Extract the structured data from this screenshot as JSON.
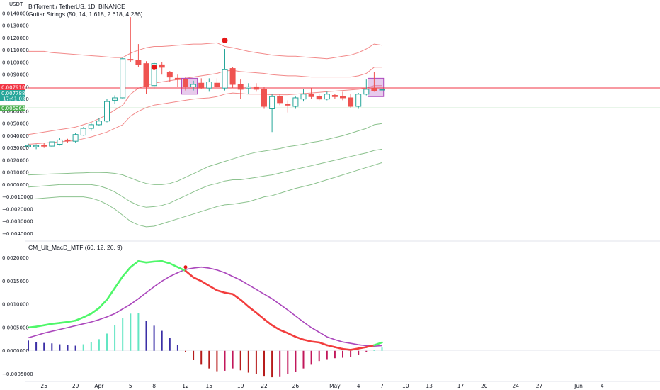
{
  "legend": {
    "symbol": "BitTorrent / TetherUS, 1D, BINANCE",
    "study1": "Guitar Strings (50, 14, 1.618, 2.618, 4.236)",
    "study2": "CM_Ult_MacD_MTF (60, 12, 26, 9)"
  },
  "currency_label": "USDT",
  "colors": {
    "up": "#26a69a",
    "down": "#ef5350",
    "upper_band": "#f28a8a",
    "lower_band": "#8cc28e",
    "macd_up": "#4ff76a",
    "macd_down": "#f23d3d",
    "signal": "#ab47bc",
    "hist_blue": "#3b2fa6",
    "hist_teal": "#63e6c3",
    "hist_red": "#b71c1c",
    "red_line": "#f23645",
    "green_line": "#4caf50"
  },
  "badges": {
    "red_line": "0.0079103",
    "last_price": "0.0077882",
    "countdown": "17:41:03",
    "green_line": "0.0062648"
  },
  "chart_data": [
    {
      "type": "candlestick",
      "title": "BitTorrent / TetherUS, 1D, BINANCE",
      "ylim": [
        -0.0045,
        0.0151
      ],
      "y_ticks": [
        "0.0140000",
        "0.0130000",
        "0.0120000",
        "0.0110000",
        "0.0100000",
        "0.0090000",
        "0.0080000",
        "0.0070000",
        "0.0060000",
        "0.0050000",
        "0.0040000",
        "0.0030000",
        "0.0020000",
        "0.0010000",
        "0.0000000",
        "−0.0010000",
        "−0.0020000",
        "−0.0030000",
        "−0.0040000"
      ],
      "y_tick_values": [
        0.014,
        0.013,
        0.012,
        0.011,
        0.01,
        0.009,
        0.008,
        0.007,
        0.006,
        0.005,
        0.004,
        0.003,
        0.002,
        0.001,
        0.0,
        -0.001,
        -0.002,
        -0.003,
        -0.004
      ],
      "horizontal_lines": [
        0.0079103,
        0.0062648
      ],
      "candles": [
        {
          "o": 0.0031,
          "h": 0.00335,
          "l": 0.00295,
          "c": 0.0032
        },
        {
          "o": 0.0031,
          "h": 0.0033,
          "l": 0.0029,
          "c": 0.0032
        },
        {
          "o": 0.0032,
          "h": 0.0034,
          "l": 0.003,
          "c": 0.00315
        },
        {
          "o": 0.00315,
          "h": 0.00345,
          "l": 0.0031,
          "c": 0.0035
        },
        {
          "o": 0.0033,
          "h": 0.0038,
          "l": 0.0032,
          "c": 0.00365
        },
        {
          "o": 0.00365,
          "h": 0.00375,
          "l": 0.00345,
          "c": 0.0036
        },
        {
          "o": 0.00355,
          "h": 0.0042,
          "l": 0.00345,
          "c": 0.0041
        },
        {
          "o": 0.00405,
          "h": 0.0047,
          "l": 0.004,
          "c": 0.0046
        },
        {
          "o": 0.0046,
          "h": 0.005,
          "l": 0.0044,
          "c": 0.0049
        },
        {
          "o": 0.0049,
          "h": 0.00545,
          "l": 0.0048,
          "c": 0.0052
        },
        {
          "o": 0.0052,
          "h": 0.007,
          "l": 0.0051,
          "c": 0.0068
        },
        {
          "o": 0.0069,
          "h": 0.0073,
          "l": 0.0066,
          "c": 0.0071
        },
        {
          "o": 0.0071,
          "h": 0.0104,
          "l": 0.007,
          "c": 0.0103
        },
        {
          "o": 0.01025,
          "h": 0.0137,
          "l": 0.01,
          "c": 0.0102
        },
        {
          "o": 0.0102,
          "h": 0.0115,
          "l": 0.0096,
          "c": 0.0098
        },
        {
          "o": 0.0099,
          "h": 0.0101,
          "l": 0.0074,
          "c": 0.008
        },
        {
          "o": 0.0081,
          "h": 0.01,
          "l": 0.0078,
          "c": 0.0099
        },
        {
          "o": 0.0098,
          "h": 0.01,
          "l": 0.009,
          "c": 0.0096
        },
        {
          "o": 0.0092,
          "h": 0.0093,
          "l": 0.0084,
          "c": 0.0088
        },
        {
          "o": 0.0087,
          "h": 0.009,
          "l": 0.008,
          "c": 0.0086
        },
        {
          "o": 0.0086,
          "h": 0.0088,
          "l": 0.0077,
          "c": 0.008
        },
        {
          "o": 0.008,
          "h": 0.0085,
          "l": 0.0077,
          "c": 0.0082
        },
        {
          "o": 0.0083,
          "h": 0.0087,
          "l": 0.0078,
          "c": 0.0079
        },
        {
          "o": 0.0079,
          "h": 0.0087,
          "l": 0.0076,
          "c": 0.0084
        },
        {
          "o": 0.0083,
          "h": 0.0087,
          "l": 0.0079,
          "c": 0.008
        },
        {
          "o": 0.0079,
          "h": 0.0111,
          "l": 0.0077,
          "c": 0.0094
        },
        {
          "o": 0.0095,
          "h": 0.0096,
          "l": 0.0079,
          "c": 0.0082
        },
        {
          "o": 0.0082,
          "h": 0.0086,
          "l": 0.007,
          "c": 0.0078
        },
        {
          "o": 0.0079,
          "h": 0.0083,
          "l": 0.0074,
          "c": 0.008
        },
        {
          "o": 0.008,
          "h": 0.0083,
          "l": 0.0076,
          "c": 0.0078
        },
        {
          "o": 0.0078,
          "h": 0.008,
          "l": 0.0062,
          "c": 0.0064
        },
        {
          "o": 0.0062,
          "h": 0.0074,
          "l": 0.0043,
          "c": 0.0072
        },
        {
          "o": 0.0072,
          "h": 0.0074,
          "l": 0.0065,
          "c": 0.0067
        },
        {
          "o": 0.0066,
          "h": 0.0069,
          "l": 0.0059,
          "c": 0.0065
        },
        {
          "o": 0.0064,
          "h": 0.0072,
          "l": 0.0062,
          "c": 0.0071
        },
        {
          "o": 0.007,
          "h": 0.0078,
          "l": 0.0068,
          "c": 0.0074
        },
        {
          "o": 0.0074,
          "h": 0.0079,
          "l": 0.007,
          "c": 0.0072
        },
        {
          "o": 0.0072,
          "h": 0.0074,
          "l": 0.0069,
          "c": 0.007
        },
        {
          "o": 0.007,
          "h": 0.0076,
          "l": 0.0069,
          "c": 0.0074
        },
        {
          "o": 0.0073,
          "h": 0.0074,
          "l": 0.007,
          "c": 0.0072
        },
        {
          "o": 0.0072,
          "h": 0.0076,
          "l": 0.0069,
          "c": 0.0071
        },
        {
          "o": 0.0071,
          "h": 0.0074,
          "l": 0.0063,
          "c": 0.0064
        },
        {
          "o": 0.0064,
          "h": 0.0075,
          "l": 0.0062,
          "c": 0.0074
        },
        {
          "o": 0.0074,
          "h": 0.0086,
          "l": 0.0073,
          "c": 0.0078
        },
        {
          "o": 0.0079,
          "h": 0.0092,
          "l": 0.0076,
          "c": 0.0077
        },
        {
          "o": 0.00775,
          "h": 0.0079,
          "l": 0.0076,
          "c": 0.00779
        }
      ],
      "upper_band_outer": [
        0.0109,
        0.0109,
        0.0109,
        0.0108,
        0.01075,
        0.0107,
        0.01065,
        0.0106,
        0.01055,
        0.0105,
        0.01045,
        0.0104,
        0.0104,
        0.01075,
        0.011,
        0.0112,
        0.0113,
        0.0113,
        0.01135,
        0.0114,
        0.01145,
        0.0115,
        0.0115,
        0.01155,
        0.0116,
        0.0113,
        0.0112,
        0.01105,
        0.0109,
        0.0108,
        0.0107,
        0.0106,
        0.01055,
        0.0105,
        0.0105,
        0.01045,
        0.0104,
        0.01035,
        0.0103,
        0.0104,
        0.0105,
        0.0106,
        0.0108,
        0.0111,
        0.0115,
        0.0114
      ],
      "upper_band_mid": [
        0.0041,
        0.0042,
        0.0043,
        0.0044,
        0.0045,
        0.0046,
        0.0047,
        0.0049,
        0.0051,
        0.0054,
        0.0057,
        0.0061,
        0.0065,
        0.0074,
        0.0079,
        0.0081,
        0.0083,
        0.0084,
        0.0085,
        0.0086,
        0.0087,
        0.0088,
        0.0089,
        0.009,
        0.0091,
        0.0093,
        0.00935,
        0.00925,
        0.0092,
        0.00915,
        0.0091,
        0.009,
        0.00895,
        0.0089,
        0.0089,
        0.00885,
        0.0088,
        0.0088,
        0.0088,
        0.0088,
        0.0088,
        0.0088,
        0.0089,
        0.0091,
        0.0096,
        0.0096
      ],
      "upper_band_inner": [
        0.0033,
        0.00335,
        0.0034,
        0.00345,
        0.0035,
        0.00355,
        0.0036,
        0.00375,
        0.0039,
        0.0041,
        0.0043,
        0.0046,
        0.0049,
        0.0056,
        0.006,
        0.0063,
        0.0065,
        0.0066,
        0.0067,
        0.0068,
        0.0069,
        0.007,
        0.00705,
        0.0071,
        0.0072,
        0.0074,
        0.0075,
        0.00745,
        0.0074,
        0.0074,
        0.0074,
        0.00735,
        0.00735,
        0.00735,
        0.0074,
        0.00745,
        0.0075,
        0.00755,
        0.0076,
        0.00765,
        0.0077,
        0.00775,
        0.0078,
        0.0079,
        0.0081,
        0.0081
      ],
      "lower_band_inner": [
        0.0008,
        0.00082,
        0.00085,
        0.00088,
        0.0009,
        0.00092,
        0.00095,
        0.00097,
        0.001,
        0.001,
        0.00098,
        0.00092,
        0.0008,
        0.00055,
        0.0003,
        0.0001,
        0.0,
        0.0,
        0.0001,
        0.0003,
        0.0006,
        0.0009,
        0.0012,
        0.0015,
        0.0017,
        0.0019,
        0.0021,
        0.0023,
        0.0025,
        0.00265,
        0.00275,
        0.00285,
        0.00295,
        0.0031,
        0.0032,
        0.0033,
        0.00345,
        0.00355,
        0.0037,
        0.00385,
        0.004,
        0.0042,
        0.0044,
        0.0046,
        0.0049,
        0.005
      ],
      "lower_band_mid": [
        -0.0002,
        -0.00015,
        -0.0001,
        -5e-05,
        0.0,
        0.0,
        0.0,
        0.0,
        0.0,
        -0.0001,
        -0.0003,
        -0.0006,
        -0.001,
        -0.0014,
        -0.0017,
        -0.00185,
        -0.0018,
        -0.0017,
        -0.0015,
        -0.0012,
        -0.0009,
        -0.0006,
        -0.0003,
        -5e-05,
        0.0001,
        0.0003,
        0.0004,
        0.0004,
        0.0005,
        0.0006,
        0.0007,
        0.0008,
        0.00095,
        0.0011,
        0.00125,
        0.0014,
        0.00155,
        0.0017,
        0.00185,
        0.002,
        0.00215,
        0.0023,
        0.00245,
        0.0026,
        0.0028,
        0.0029
      ],
      "lower_band_outer": [
        -0.0012,
        -0.00115,
        -0.0011,
        -0.00105,
        -0.001,
        -0.001,
        -0.001,
        -0.001,
        -0.0011,
        -0.0013,
        -0.0016,
        -0.002,
        -0.0025,
        -0.003,
        -0.0033,
        -0.00345,
        -0.0034,
        -0.0032,
        -0.003,
        -0.0028,
        -0.0026,
        -0.0024,
        -0.0022,
        -0.002,
        -0.0018,
        -0.00165,
        -0.0016,
        -0.0015,
        -0.0014,
        -0.0012,
        -0.001,
        -0.0009,
        -0.0007,
        -0.0005,
        -0.0003,
        -0.00015,
        0.0,
        0.0002,
        0.0004,
        0.0006,
        0.0008,
        0.001,
        0.0012,
        0.0014,
        0.0016,
        0.0018
      ],
      "signal_dots": [
        {
          "index": 16,
          "y": 0.0096
        },
        {
          "index": 25,
          "y": 0.0118
        }
      ],
      "boxes": [
        {
          "from": 19.5,
          "to": 21.5,
          "top": 0.0087,
          "bottom": 0.0074
        },
        {
          "from": 43.2,
          "to": 45.2,
          "top": 0.0087,
          "bottom": 0.0072
        }
      ]
    },
    {
      "type": "line",
      "title": "CM_Ult_MacD_MTF (60, 12, 26, 9)",
      "ylim": [
        -0.00066,
        0.00233
      ],
      "y_ticks": [
        "0.0020000",
        "0.0015000",
        "0.0010000",
        "0.0005000",
        "0.0000000",
        "−0.0005000"
      ],
      "y_tick_values": [
        0.002,
        0.0015,
        0.001,
        0.0005,
        0.0,
        -0.0005
      ],
      "series": [
        {
          "role": "macd",
          "values": [
            0.0005,
            0.00052,
            0.00055,
            0.00058,
            0.0006,
            0.00062,
            0.00065,
            0.00072,
            0.0008,
            0.00092,
            0.0011,
            0.00135,
            0.0016,
            0.0018,
            0.00193,
            0.0019,
            0.00192,
            0.00193,
            0.00188,
            0.0018,
            0.00172,
            0.00158,
            0.0015,
            0.0014,
            0.0013,
            0.00125,
            0.00122,
            0.0011,
            0.00095,
            0.00082,
            0.00068,
            0.00055,
            0.00045,
            0.00038,
            0.0003,
            0.00024,
            0.0002,
            0.00018,
            0.00012,
            8e-05,
            4e-05,
            2e-05,
            5e-05,
            8e-05,
            0.00012,
            0.00018
          ]
        },
        {
          "role": "signal",
          "values": [
            0.00028,
            0.00033,
            0.00038,
            0.00042,
            0.00046,
            0.0005,
            0.00054,
            0.00058,
            0.00062,
            0.00067,
            0.00073,
            0.0008,
            0.0009,
            0.001,
            0.00112,
            0.00125,
            0.00138,
            0.0015,
            0.0016,
            0.00168,
            0.00175,
            0.00178,
            0.0018,
            0.00178,
            0.00174,
            0.00168,
            0.0016,
            0.00152,
            0.00142,
            0.00132,
            0.00122,
            0.00112,
            0.001,
            0.00088,
            0.00075,
            0.00062,
            0.0005,
            0.0004,
            0.0003,
            0.00024,
            0.00019,
            0.00016,
            0.00013,
            0.00011,
            0.0001,
            0.00011
          ]
        },
        {
          "role": "histogram",
          "values": [
            0.00022,
            0.00019,
            0.00017,
            0.00016,
            0.00014,
            0.00012,
            0.00011,
            0.00014,
            0.00018,
            0.00025,
            0.00037,
            0.00055,
            0.0007,
            0.0008,
            0.00081,
            0.00065,
            0.00054,
            0.00043,
            0.00028,
            0.00012,
            -3e-05,
            -0.0002,
            -0.0003,
            -0.00038,
            -0.00044,
            -0.00043,
            -0.00038,
            -0.00042,
            -0.00047,
            -0.0005,
            -0.00054,
            -0.00057,
            -0.00055,
            -0.0005,
            -0.00045,
            -0.00038,
            -0.0003,
            -0.00022,
            -0.00018,
            -0.00016,
            -0.00015,
            -0.00014,
            -8e-05,
            -3e-05,
            2e-05,
            7e-05
          ]
        }
      ],
      "cross_dot": {
        "index": 20,
        "y": 0.0018
      }
    }
  ],
  "x_ticks": [
    {
      "label": "25",
      "index": 2
    },
    {
      "label": "29",
      "index": 6
    },
    {
      "label": "Apr",
      "index": 9
    },
    {
      "label": "5",
      "index": 13
    },
    {
      "label": "8",
      "index": 16
    },
    {
      "label": "12",
      "index": 20
    },
    {
      "label": "15",
      "index": 23
    },
    {
      "label": "19",
      "index": 27
    },
    {
      "label": "22",
      "index": 30
    },
    {
      "label": "26",
      "index": 34
    },
    {
      "label": "May",
      "index": 39
    },
    {
      "label": "4",
      "index": 42
    },
    {
      "label": "7",
      "index": 45
    },
    {
      "label": "10",
      "index": 48
    },
    {
      "label": "13",
      "index": 51
    },
    {
      "label": "17",
      "index": 55
    },
    {
      "label": "20",
      "index": 58
    },
    {
      "label": "24",
      "index": 62
    },
    {
      "label": "27",
      "index": 65
    },
    {
      "label": "Jun",
      "index": 70
    },
    {
      "label": "4",
      "index": 73
    }
  ]
}
